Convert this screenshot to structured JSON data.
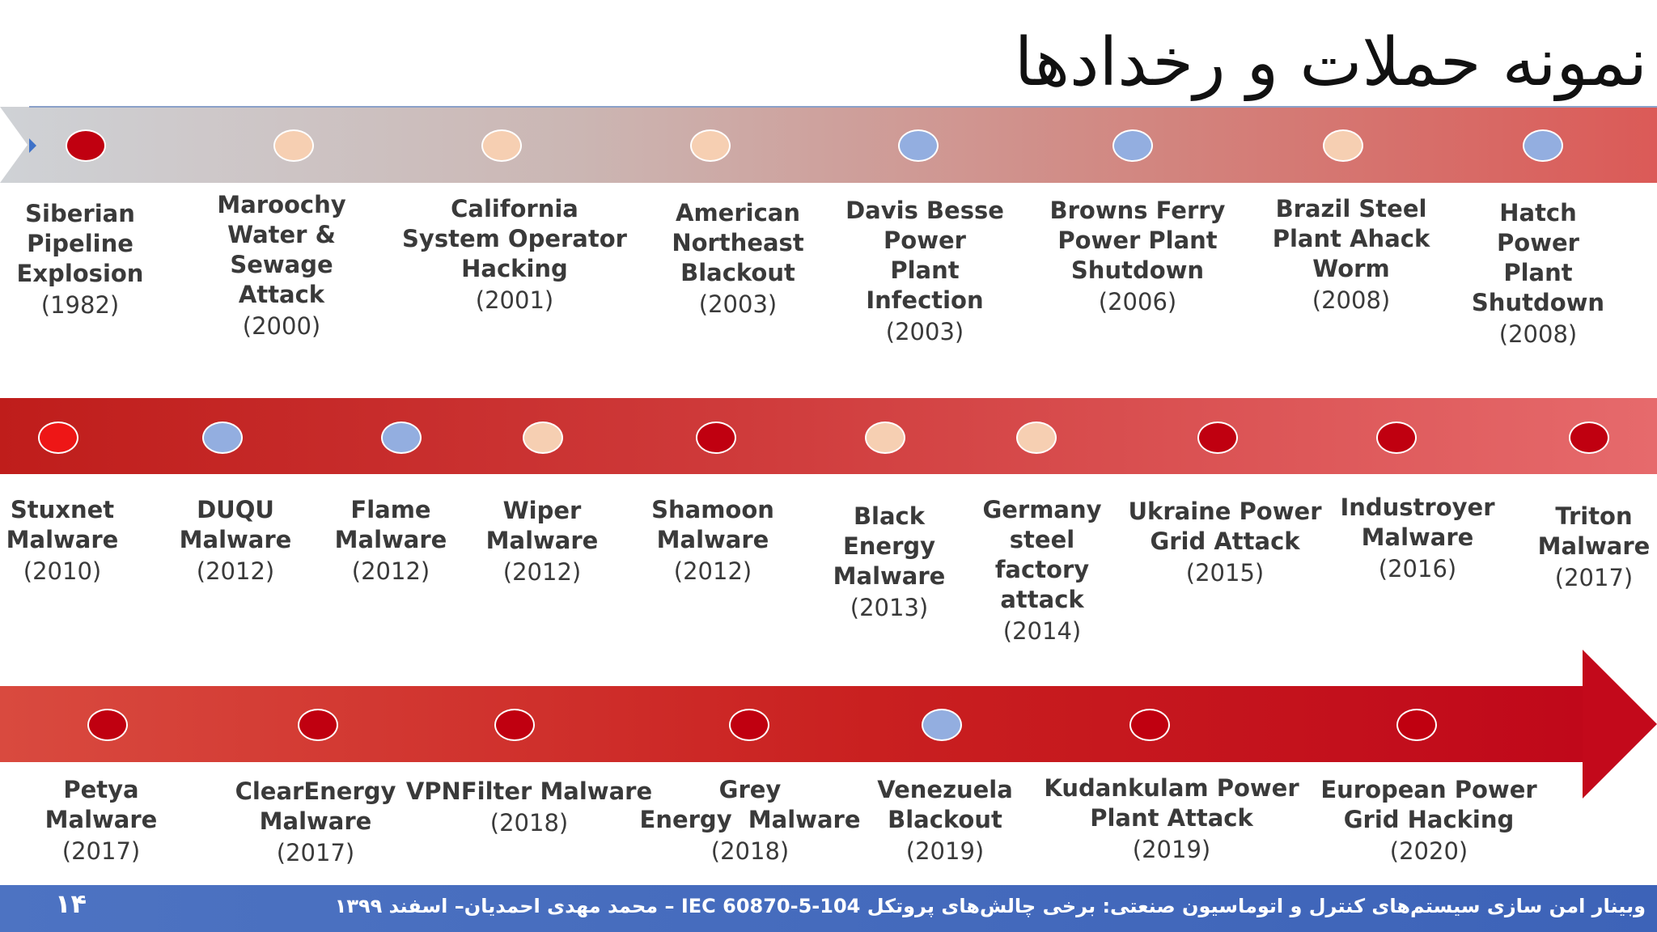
{
  "title": "نمونه حملات و رخدادها",
  "colors": {
    "critical": "#c00010",
    "medium": "#f6cfb2",
    "low": "#93aee0",
    "bright": "#ee1616"
  },
  "rows": [
    {
      "events": [
        {
          "name": "Siberian\nPipeline\nExplosion",
          "year": "(1982)",
          "dot": "critical"
        },
        {
          "name": "Maroochy\nWater &\nSewage\nAttack",
          "year": "(2000)",
          "dot": "medium"
        },
        {
          "name": "California\nSystem Operator\nHacking",
          "year": "(2001)",
          "dot": "medium"
        },
        {
          "name": "American\nNortheast\nBlackout",
          "year": "(2003)",
          "dot": "medium"
        },
        {
          "name": "Davis Besse\nPower\nPlant\nInfection",
          "year": "(2003)",
          "dot": "low"
        },
        {
          "name": "Browns Ferry\nPower Plant\nShutdown",
          "year": "(2006)",
          "dot": "low"
        },
        {
          "name": "Brazil Steel\nPlant Ahack\nWorm",
          "year": "(2008)",
          "dot": "medium"
        },
        {
          "name": "Hatch\nPower\nPlant\nShutdown",
          "year": "(2008)",
          "dot": "low"
        }
      ]
    },
    {
      "events": [
        {
          "name": "Stuxnet\nMalware",
          "year": "(2010)",
          "dot": "bright"
        },
        {
          "name": "DUQU\nMalware",
          "year": "(2012)",
          "dot": "low"
        },
        {
          "name": "Flame\nMalware",
          "year": "(2012)",
          "dot": "low"
        },
        {
          "name": "Wiper\nMalware",
          "year": "(2012)",
          "dot": "medium"
        },
        {
          "name": "Shamoon\nMalware",
          "year": "(2012)",
          "dot": "critical"
        },
        {
          "name": "Black\nEnergy\nMalware",
          "year": "(2013)",
          "dot": "medium"
        },
        {
          "name": "Germany\nsteel\nfactory\nattack",
          "year": "(2014)",
          "dot": "medium"
        },
        {
          "name": "Ukraine Power\nGrid Attack",
          "year": "(2015)",
          "dot": "critical"
        },
        {
          "name": "Industroyer\nMalware",
          "year": "(2016)",
          "dot": "critical"
        },
        {
          "name": "Triton\nMalware",
          "year": "(2017)",
          "dot": "critical"
        }
      ]
    },
    {
      "events": [
        {
          "name": "Petya\nMalware",
          "year": "(2017)",
          "dot": "critical"
        },
        {
          "name": "ClearEnergy\nMalware",
          "year": "(2017)",
          "dot": "critical"
        },
        {
          "name": "VPNFilter Malware",
          "year": "(2018)",
          "dot": "critical"
        },
        {
          "name": "Grey\nEnergy  Malware",
          "year": "(2018)",
          "dot": "critical"
        },
        {
          "name": "Venezuela\nBlackout",
          "year": "(2019)",
          "dot": "low"
        },
        {
          "name": "Kudankulam Power\nPlant Attack",
          "year": "(2019)",
          "dot": "critical"
        },
        {
          "name": "European Power\nGrid Hacking",
          "year": "(2020)",
          "dot": "critical"
        }
      ]
    }
  ],
  "footer": {
    "page_number": "۱۴",
    "text": "وبینار امن سازی سیستم‌های کنترل و اتوماسیون صنعتی: برخی چالش‌های پروتکل  IEC 60870-5-104 – محمد مهدی احمدیان– اسفند  ۱۳۹۹"
  }
}
